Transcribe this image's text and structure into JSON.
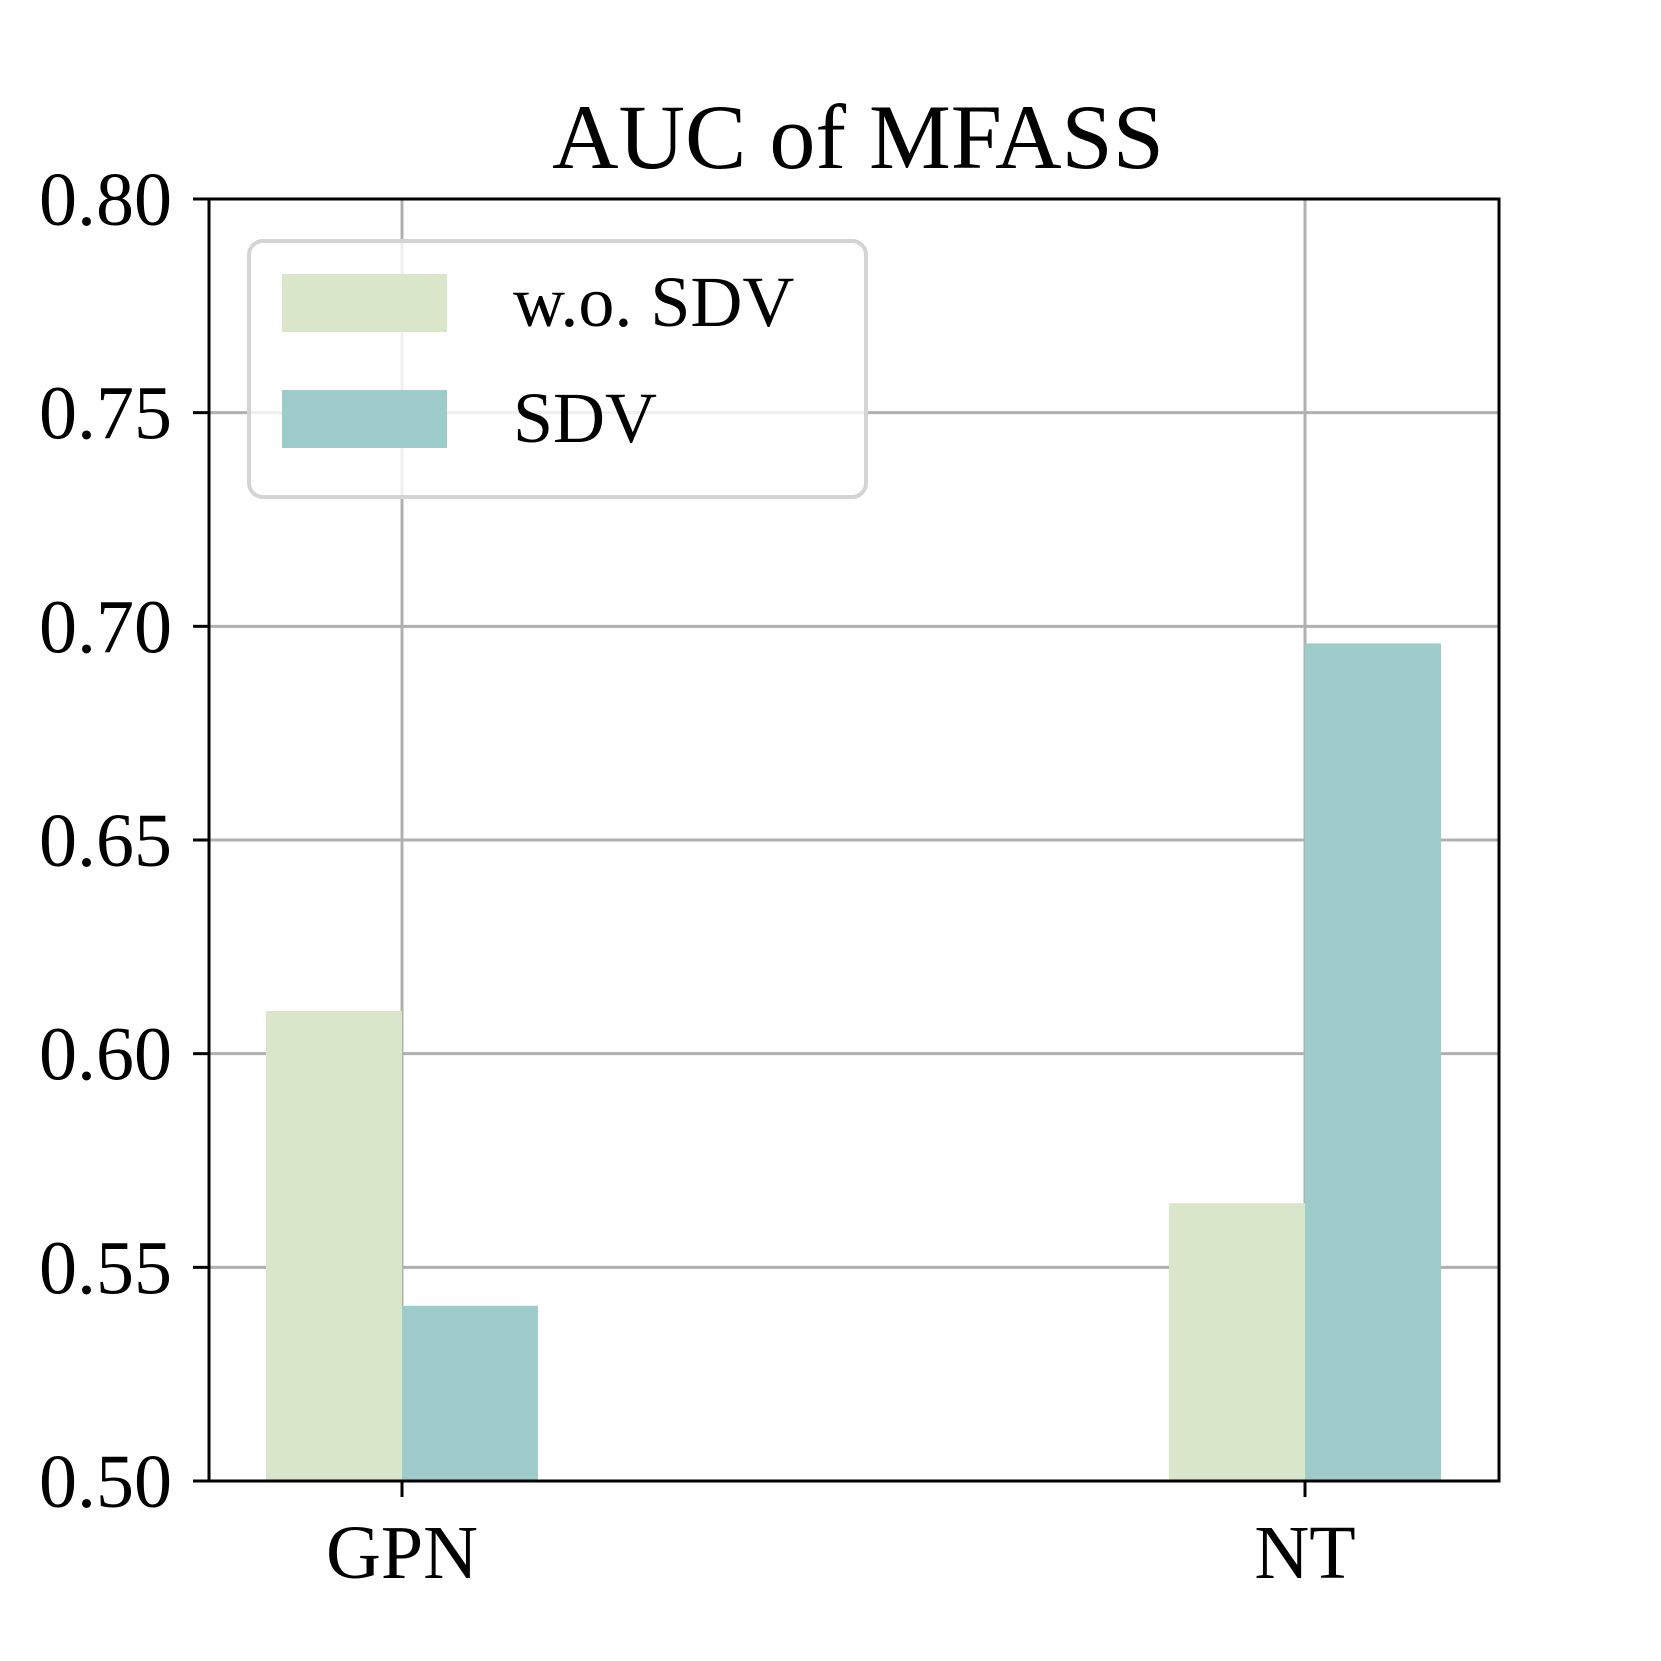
{
  "chart_data": {
    "type": "bar",
    "title": "AUC of MFASS",
    "xlabel": "",
    "ylabel": "",
    "categories": [
      "GPN",
      "NT"
    ],
    "series": [
      {
        "name": "w.o. SDV",
        "values": [
          0.61,
          0.565
        ],
        "color": "#d9e6ca"
      },
      {
        "name": "SDV",
        "values": [
          0.541,
          0.696
        ],
        "color": "#9dcccb"
      }
    ],
    "ylim": [
      0.5,
      0.8
    ],
    "yticks": [
      "0.50",
      "0.55",
      "0.60",
      "0.65",
      "0.70",
      "0.75",
      "0.80"
    ],
    "grid": true,
    "legend_position": "top-left"
  }
}
